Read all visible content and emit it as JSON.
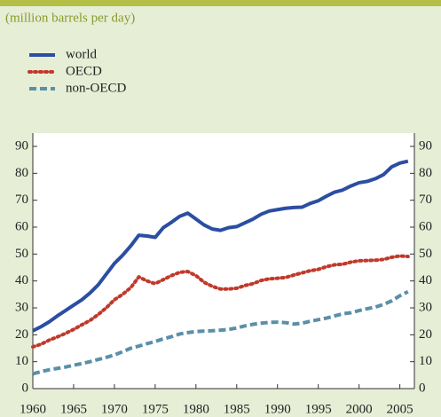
{
  "chart_data": {
    "type": "line",
    "subtitle": "(million barrels per day)",
    "x": [
      1960,
      1961,
      1962,
      1963,
      1964,
      1965,
      1966,
      1967,
      1968,
      1969,
      1970,
      1971,
      1972,
      1973,
      1974,
      1975,
      1976,
      1977,
      1978,
      1979,
      1980,
      1981,
      1982,
      1983,
      1984,
      1985,
      1986,
      1987,
      1988,
      1989,
      1990,
      1991,
      1992,
      1993,
      1994,
      1995,
      1996,
      1997,
      1998,
      1999,
      2000,
      2001,
      2002,
      2003,
      2004,
      2005,
      2006
    ],
    "series": [
      {
        "name": "world",
        "color": "#2b4ea2",
        "dash": "solid",
        "values": [
          21.5,
          23,
          24.8,
          27,
          29,
          31,
          33,
          35.5,
          38.5,
          42.5,
          46.5,
          49.5,
          53,
          57,
          56.7,
          56.2,
          59.8,
          61.8,
          64,
          65.2,
          63,
          60.8,
          59.3,
          58.8,
          59.8,
          60.2,
          61.6,
          63,
          64.8,
          66,
          66.5,
          67,
          67.3,
          67.4,
          68.8,
          69.8,
          71.5,
          73,
          73.8,
          75.3,
          76.5,
          77,
          78,
          79.5,
          82.4,
          83.8,
          84.5
        ]
      },
      {
        "name": "OECD",
        "color": "#c0392b",
        "dash": "dotted",
        "values": [
          15.5,
          16.5,
          18,
          19.2,
          20.5,
          22,
          23.7,
          25.3,
          27.5,
          30,
          33,
          35,
          37.5,
          41.5,
          40,
          39,
          40.5,
          42,
          43.2,
          43.5,
          42,
          39.5,
          38,
          37,
          37,
          37.3,
          38.3,
          39,
          40.2,
          40.8,
          41,
          41.3,
          42.2,
          43,
          43.8,
          44.3,
          45.3,
          46,
          46.2,
          47,
          47.5,
          47.6,
          47.7,
          48,
          48.8,
          49.3,
          49.1
        ]
      },
      {
        "name": "non-OECD",
        "color": "#5b8fa8",
        "dash": "dashed",
        "values": [
          5.5,
          6.3,
          7,
          7.5,
          8,
          8.7,
          9.3,
          10,
          10.8,
          11.6,
          12.5,
          13.7,
          15,
          15.8,
          16.7,
          17.5,
          18.5,
          19.3,
          20.3,
          20.8,
          21.2,
          21.4,
          21.5,
          21.7,
          22,
          22.5,
          23.3,
          23.9,
          24.3,
          24.6,
          24.7,
          24.5,
          24,
          24.3,
          25,
          25.6,
          26.2,
          27,
          27.8,
          28.2,
          29,
          29.7,
          30.3,
          31.3,
          32.6,
          34.5,
          36
        ]
      }
    ],
    "xlim": [
      1960,
      2007
    ],
    "xticks": [
      1960,
      1965,
      1970,
      1975,
      1980,
      1985,
      1990,
      1995,
      2000,
      2005
    ],
    "ylim": [
      0,
      90
    ],
    "yticks": [
      0,
      10,
      20,
      30,
      40,
      50,
      60,
      70,
      80,
      90
    ]
  }
}
